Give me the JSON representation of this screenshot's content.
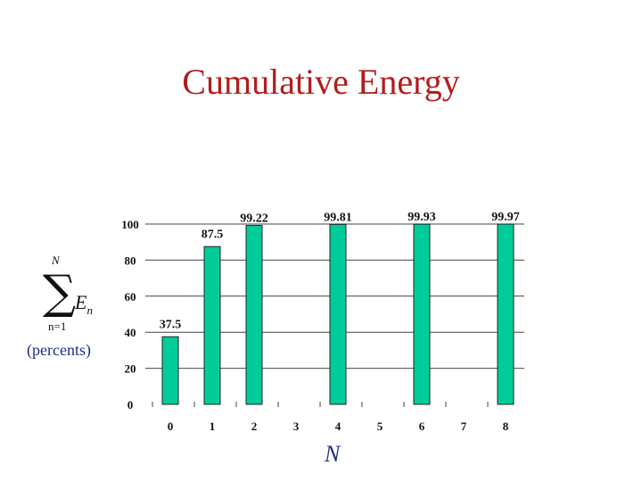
{
  "title": "Cumulative Energy",
  "ylabel": {
    "sum_symbol": "∑",
    "sum_upper": "N",
    "sum_lower": "n=1",
    "term": "E",
    "term_sub": "n",
    "units": "(percents)"
  },
  "xlabel": "N",
  "colors": {
    "bar": "#00cc99",
    "title": "#b21d1d",
    "label": "#1f2d8a"
  },
  "chart_data": {
    "type": "bar",
    "title": "Cumulative Energy",
    "xlabel": "N",
    "ylabel": "(percents)",
    "categories": [
      "0",
      "1",
      "2",
      "3",
      "4",
      "5",
      "6",
      "7",
      "8"
    ],
    "values": [
      37.5,
      87.5,
      99.22,
      null,
      99.81,
      null,
      99.93,
      null,
      99.97
    ],
    "data_labels": [
      "37.5",
      "87.5",
      "99.22",
      "",
      "99.81",
      "",
      "99.93",
      "",
      "99.97"
    ],
    "yticks": [
      "0",
      "20",
      "40",
      "60",
      "80",
      "100"
    ],
    "ylim": [
      0,
      100
    ],
    "grid": true
  }
}
